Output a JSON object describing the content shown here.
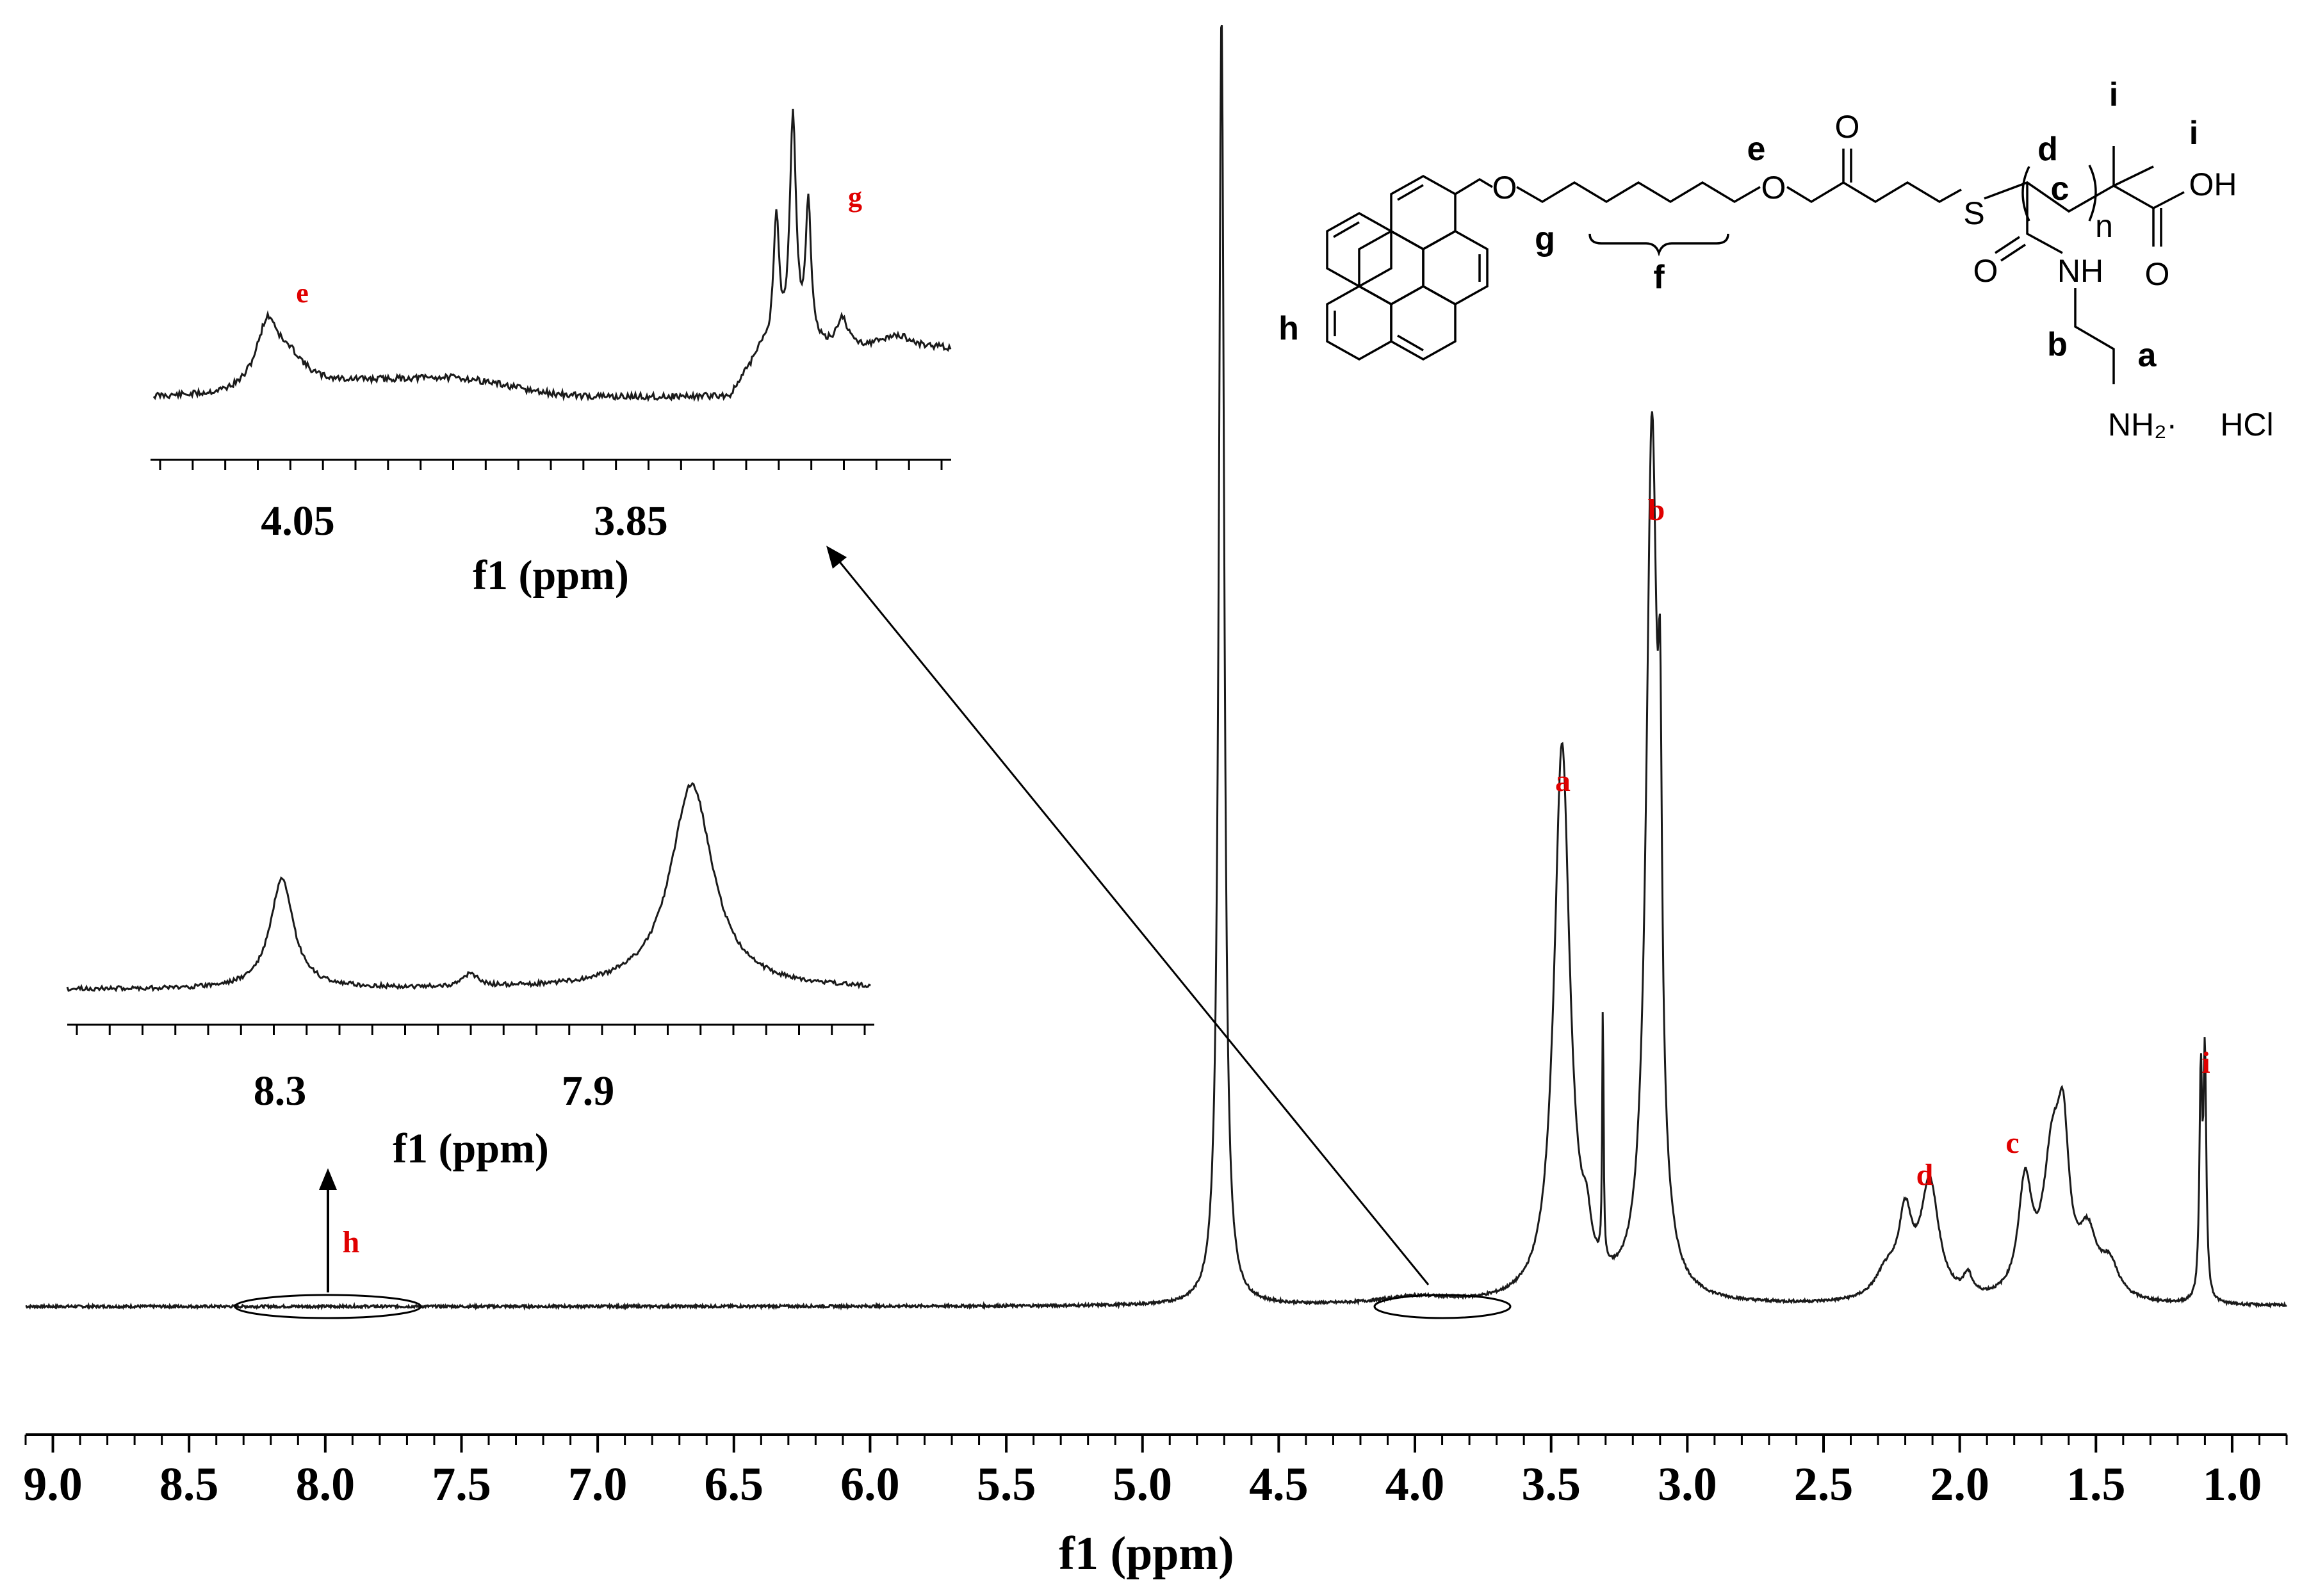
{
  "chart_data": {
    "type": "line",
    "title": "",
    "main": {
      "xlabel": "f1 (ppm)",
      "xlim": [
        9.1,
        0.8
      ],
      "x_reversed": true,
      "ticks": [
        9.0,
        8.5,
        8.0,
        7.5,
        7.0,
        6.5,
        6.0,
        5.5,
        5.0,
        4.5,
        4.0,
        3.5,
        3.0,
        2.5,
        2.0,
        1.5,
        1.0
      ],
      "tick_labels": [
        "9.0",
        "8.5",
        "8.0",
        "7.5",
        "7.0",
        "6.5",
        "6.0",
        "5.5",
        "5.0",
        "4.5",
        "4.0",
        "3.5",
        "3.0",
        "2.5",
        "2.0",
        "1.5",
        "1.0"
      ],
      "peaks": [
        {
          "label": "",
          "ppm": 4.71,
          "height": 1.0,
          "width": 0.012,
          "note": "solvent"
        },
        {
          "label": "a",
          "ppm": 3.46,
          "height": 0.43,
          "width": 0.035
        },
        {
          "label": "b",
          "ppm": 3.13,
          "height": 0.67,
          "width": 0.025
        },
        {
          "label": "",
          "ppm": 3.31,
          "height": 0.2,
          "width": 0.003
        },
        {
          "label": "d",
          "ppm": 2.11,
          "height": 0.09,
          "width": 0.04
        },
        {
          "label": "c",
          "ppm": 1.66,
          "height": 0.105,
          "width": 0.04
        },
        {
          "label": "i",
          "ppm": 1.1,
          "height": 0.185,
          "width": 0.006
        }
      ],
      "peak_labels": [
        "a",
        "b",
        "c",
        "d",
        "i"
      ]
    },
    "inset_upper": {
      "xlabel": "f1 (ppm)",
      "tick_labels": [
        "4.05",
        "3.85"
      ],
      "peak_labels": [
        "e",
        "g"
      ]
    },
    "inset_lower": {
      "xlabel": "f1 (ppm)",
      "tick_labels": [
        "8.3",
        "7.9"
      ]
    },
    "region_marker_label": "h"
  },
  "structure": {
    "atom_labels": {
      "o_ether": "O",
      "o_ester": "O",
      "o_carbonyl": "O",
      "s": "S",
      "n_sub": "n",
      "oh": "OH",
      "o_acid": "O",
      "o_amide": "O",
      "nh": "NH",
      "nh2": "NH₂·",
      "hcl": "HCl"
    },
    "position_labels": [
      "a",
      "b",
      "c",
      "d",
      "e",
      "f",
      "g",
      "h",
      "i",
      "i"
    ]
  },
  "colors": {
    "spectrum": "#1a1a1a",
    "label_red": "#e00000",
    "axis": "#000000"
  }
}
